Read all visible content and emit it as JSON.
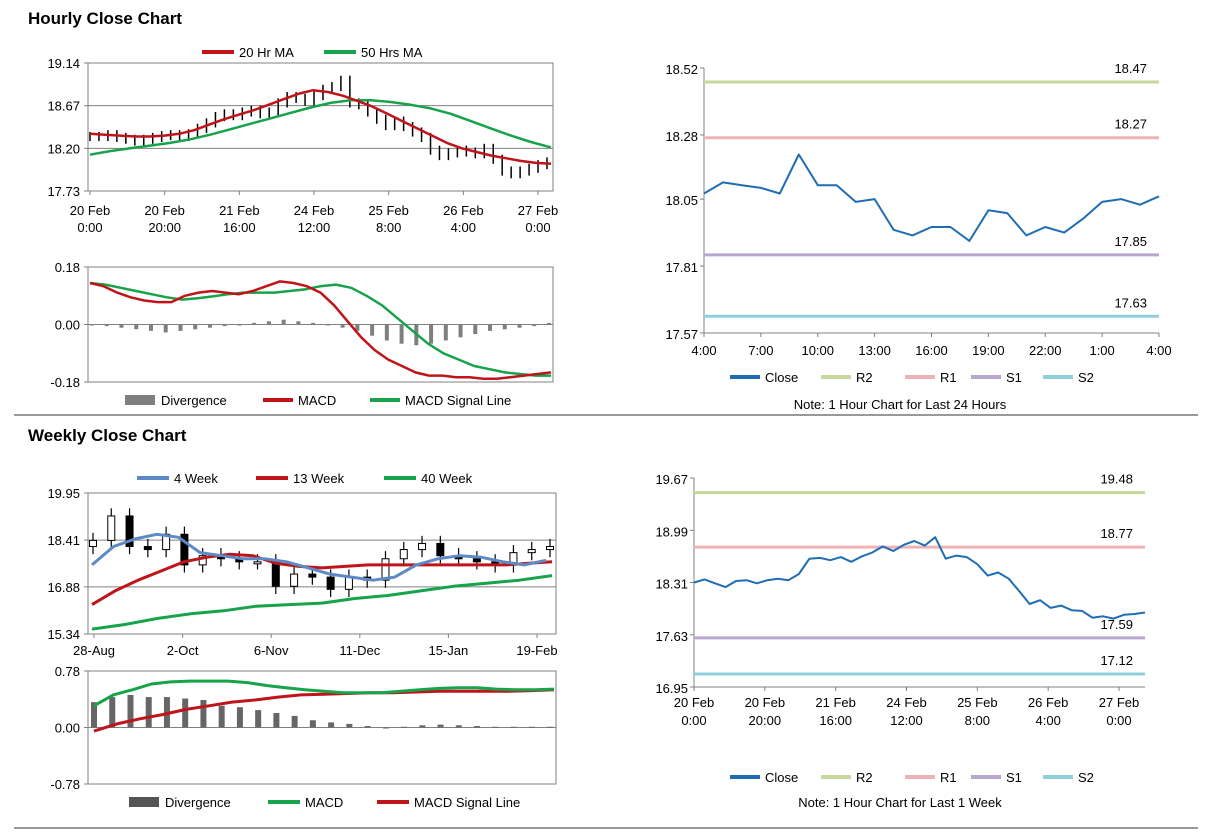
{
  "sections": {
    "hourly_title": "Hourly Close Chart",
    "weekly_title": "Weekly Close Chart"
  },
  "colors": {
    "close": "#1f6db5",
    "ma20": "#c0141b",
    "ma50": "#16a34a",
    "r2": "#c4d99a",
    "r1": "#f0b3b3",
    "s1": "#b9a6d0",
    "s2": "#8fd0dd",
    "grid": "#808080",
    "div": "#7f7f7f",
    "price": "#000000"
  },
  "chart_data": [
    {
      "id": "hourly_price",
      "type": "candlestick",
      "title": "Hourly Close Chart",
      "legend": [
        "20 Hr MA",
        "50 Hrs MA"
      ],
      "y_ticks": [
        "19.14",
        "18.67",
        "18.20",
        "17.73"
      ],
      "ylim": [
        17.73,
        19.14
      ],
      "x_ticks": [
        [
          "20 Feb",
          "0:00"
        ],
        [
          "20 Feb",
          "20:00"
        ],
        [
          "21 Feb",
          "16:00"
        ],
        [
          "24 Feb",
          "12:00"
        ],
        [
          "25 Feb",
          "8:00"
        ],
        [
          "26 Feb",
          "4:00"
        ],
        [
          "27 Feb",
          "0:00"
        ]
      ],
      "close": [
        18.33,
        18.33,
        18.35,
        18.32,
        18.3,
        18.28,
        18.3,
        18.32,
        18.34,
        18.35,
        18.33,
        18.36,
        18.42,
        18.48,
        18.55,
        18.58,
        18.56,
        18.6,
        18.62,
        18.58,
        18.6,
        18.7,
        18.77,
        18.75,
        18.72,
        18.78,
        18.85,
        18.88,
        18.95,
        18.7,
        18.68,
        18.6,
        18.52,
        18.45,
        18.5,
        18.44,
        18.38,
        18.32,
        18.18,
        18.12,
        18.15,
        18.18,
        18.16,
        18.14,
        18.2,
        18.08,
        17.95,
        17.92,
        17.95,
        17.98,
        18.02,
        18.05
      ],
      "ma20": [
        18.36,
        18.35,
        18.34,
        18.33,
        18.33,
        18.34,
        18.36,
        18.4,
        18.46,
        18.52,
        18.57,
        18.62,
        18.68,
        18.74,
        18.8,
        18.84,
        18.82,
        18.78,
        18.72,
        18.66,
        18.58,
        18.5,
        18.42,
        18.34,
        18.26,
        18.2,
        18.16,
        18.12,
        18.09,
        18.06,
        18.04,
        18.03
      ],
      "ma50": [
        18.13,
        18.17,
        18.2,
        18.23,
        18.26,
        18.3,
        18.35,
        18.41,
        18.47,
        18.53,
        18.59,
        18.65,
        18.7,
        18.73,
        18.73,
        18.71,
        18.68,
        18.64,
        18.58,
        18.5,
        18.42,
        18.34,
        18.27,
        18.21
      ]
    },
    {
      "id": "hourly_macd",
      "type": "line+bar",
      "legend": [
        "Divergence",
        "MACD",
        "MACD Signal Line"
      ],
      "y_ticks": [
        "0.18",
        "0.00",
        "-0.18"
      ],
      "ylim": [
        -0.18,
        0.18
      ],
      "macd": [
        0.13,
        0.12,
        0.1,
        0.085,
        0.075,
        0.07,
        0.07,
        0.09,
        0.1,
        0.105,
        0.1,
        0.095,
        0.105,
        0.12,
        0.135,
        0.13,
        0.12,
        0.1,
        0.06,
        0.01,
        -0.04,
        -0.08,
        -0.11,
        -0.13,
        -0.15,
        -0.16,
        -0.16,
        -0.165,
        -0.165,
        -0.17,
        -0.17,
        -0.165,
        -0.16,
        -0.155,
        -0.15
      ],
      "signal": [
        0.13,
        0.125,
        0.115,
        0.105,
        0.095,
        0.085,
        0.078,
        0.082,
        0.088,
        0.095,
        0.1,
        0.1,
        0.1,
        0.105,
        0.11,
        0.12,
        0.125,
        0.115,
        0.09,
        0.06,
        0.02,
        -0.02,
        -0.06,
        -0.09,
        -0.11,
        -0.13,
        -0.14,
        -0.15,
        -0.155,
        -0.16,
        -0.16
      ],
      "divergence": [
        0,
        -0.005,
        -0.01,
        -0.015,
        -0.02,
        -0.025,
        -0.02,
        -0.015,
        -0.01,
        -0.005,
        0,
        0.005,
        0.01,
        0.015,
        0.01,
        0.005,
        0,
        -0.01,
        -0.02,
        -0.035,
        -0.05,
        -0.06,
        -0.065,
        -0.06,
        -0.05,
        -0.04,
        -0.03,
        -0.02,
        -0.015,
        -0.01,
        -0.005,
        0.005
      ]
    },
    {
      "id": "hourly_levels",
      "type": "line",
      "note": "Note: 1 Hour Chart for Last 24 Hours",
      "legend": [
        "Close",
        "R2",
        "R1",
        "S1",
        "S2"
      ],
      "y_ticks": [
        "18.52",
        "18.28",
        "18.05",
        "17.81",
        "17.57"
      ],
      "ylim": [
        17.57,
        18.52
      ],
      "x_ticks": [
        "4:00",
        "7:00",
        "10:00",
        "13:00",
        "16:00",
        "19:00",
        "22:00",
        "1:00",
        "4:00"
      ],
      "levels": {
        "R2": 18.47,
        "R1": 18.27,
        "S1": 17.85,
        "S2": 17.63
      },
      "level_labels": {
        "R2": "18.47",
        "R1": "18.27",
        "S1": "17.85",
        "S2": "17.63"
      },
      "close": [
        18.07,
        18.11,
        18.1,
        18.09,
        18.07,
        18.21,
        18.1,
        18.1,
        18.04,
        18.05,
        17.94,
        17.92,
        17.95,
        17.95,
        17.9,
        18.01,
        18.0,
        17.92,
        17.95,
        17.93,
        17.98,
        18.04,
        18.05,
        18.03,
        18.06
      ]
    },
    {
      "id": "weekly_price",
      "type": "candlestick",
      "title": "Weekly Close Chart",
      "legend": [
        "4 Week",
        "13 Week",
        "40 Week"
      ],
      "y_ticks": [
        "19.95",
        "18.41",
        "16.88",
        "15.34"
      ],
      "ylim": [
        15.34,
        19.95
      ],
      "x_ticks": [
        "28-Aug",
        "2-Oct",
        "6-Nov",
        "11-Dec",
        "15-Jan",
        "19-Feb"
      ],
      "close": [
        18.4,
        19.2,
        18.2,
        18.1,
        18.6,
        17.6,
        17.9,
        17.8,
        17.7,
        17.7,
        16.9,
        17.3,
        17.2,
        16.8,
        17.2,
        17.1,
        17.8,
        18.1,
        18.3,
        17.9,
        17.8,
        17.7,
        17.6,
        18.0,
        18.1,
        18.2
      ],
      "ma4": [
        17.6,
        18.2,
        18.45,
        18.6,
        18.5,
        18.0,
        17.9,
        17.8,
        17.8,
        17.7,
        17.5,
        17.3,
        17.2,
        17.1,
        17.2,
        17.6,
        17.8,
        17.9,
        17.85,
        17.7,
        17.6,
        17.75
      ],
      "ma13": [
        16.3,
        16.75,
        17.1,
        17.4,
        17.7,
        17.85,
        17.95,
        17.9,
        17.65,
        17.55,
        17.5,
        17.55,
        17.6,
        17.6,
        17.6,
        17.6,
        17.6,
        17.6,
        17.6,
        17.65,
        17.7
      ],
      "ma40": [
        15.5,
        15.65,
        15.85,
        16.0,
        16.1,
        16.25,
        16.3,
        16.35,
        16.5,
        16.6,
        16.75,
        16.9,
        17.0,
        17.1,
        17.25
      ]
    },
    {
      "id": "weekly_macd",
      "type": "line+bar",
      "legend": [
        "Divergence",
        "MACD",
        "MACD Signal Line"
      ],
      "y_ticks": [
        "0.78",
        "0.00",
        "-0.78"
      ],
      "ylim": [
        -0.78,
        0.78
      ],
      "macd": [
        0.3,
        0.45,
        0.52,
        0.6,
        0.63,
        0.64,
        0.64,
        0.64,
        0.62,
        0.58,
        0.55,
        0.52,
        0.5,
        0.48,
        0.48,
        0.48,
        0.5,
        0.52,
        0.54,
        0.55,
        0.55,
        0.53,
        0.52,
        0.52,
        0.53
      ],
      "signal": [
        -0.05,
        0.05,
        0.12,
        0.18,
        0.25,
        0.3,
        0.35,
        0.38,
        0.42,
        0.45,
        0.46,
        0.47,
        0.48,
        0.48,
        0.49,
        0.5,
        0.5,
        0.5,
        0.5,
        0.51,
        0.52
      ],
      "divergence": [
        0.35,
        0.42,
        0.45,
        0.42,
        0.42,
        0.4,
        0.38,
        0.3,
        0.28,
        0.24,
        0.2,
        0.16,
        0.1,
        0.07,
        0.05,
        0.02,
        0.0,
        0.01,
        0.03,
        0.04,
        0.03,
        0.02,
        0.01,
        0.01,
        0.01,
        0.01
      ]
    },
    {
      "id": "weekly_levels",
      "type": "line",
      "note": "Note: 1 Hour Chart for Last 1 Week",
      "legend": [
        "Close",
        "R2",
        "R1",
        "S1",
        "S2"
      ],
      "y_ticks": [
        "19.67",
        "18.99",
        "18.31",
        "17.63",
        "16.95"
      ],
      "ylim": [
        16.95,
        19.67
      ],
      "x_ticks": [
        [
          "20 Feb",
          "0:00"
        ],
        [
          "20 Feb",
          "20:00"
        ],
        [
          "21 Feb",
          "16:00"
        ],
        [
          "24 Feb",
          "12:00"
        ],
        [
          "25 Feb",
          "8:00"
        ],
        [
          "26 Feb",
          "4:00"
        ],
        [
          "27 Feb",
          "0:00"
        ]
      ],
      "levels": {
        "R2": 19.48,
        "R1": 18.77,
        "S1": 17.59,
        "S2": 17.12
      },
      "level_labels": {
        "R2": "19.48",
        "R1": "18.77",
        "S1": "17.59",
        "S2": "17.12"
      },
      "close": [
        18.31,
        18.35,
        18.3,
        18.25,
        18.33,
        18.34,
        18.3,
        18.34,
        18.36,
        18.34,
        18.42,
        18.62,
        18.63,
        18.6,
        18.64,
        18.58,
        18.65,
        18.7,
        18.78,
        18.72,
        18.8,
        18.85,
        18.79,
        18.9,
        18.62,
        18.66,
        18.64,
        18.55,
        18.4,
        18.44,
        18.36,
        18.2,
        18.03,
        18.08,
        17.98,
        18.01,
        17.95,
        17.94,
        17.85,
        17.87,
        17.84,
        17.89,
        17.9,
        17.92
      ]
    }
  ]
}
